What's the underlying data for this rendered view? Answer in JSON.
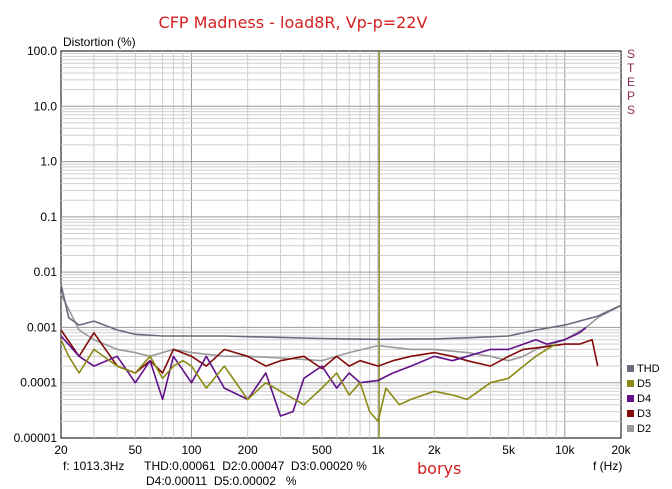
{
  "chart_data": {
    "type": "line",
    "title": "CFP Madness - load8R, Vp-p=22V",
    "ylabel": "Distortion (%)",
    "xlabel": "f (Hz)",
    "x_scale": "log",
    "y_scale": "log",
    "xlim": [
      20,
      20000
    ],
    "ylim": [
      1e-05,
      100
    ],
    "x_ticks": [
      "20",
      "50",
      "100",
      "200",
      "500",
      "1k",
      "2k",
      "5k",
      "10k",
      "20k"
    ],
    "y_ticks": [
      "100.0",
      "10.0",
      "1.0",
      "0.1",
      "0.01",
      "0.001",
      "0.0001",
      "0.00001"
    ],
    "grid": true,
    "marker_x": 1013.3,
    "steps_label": "STEPS",
    "legend": [
      "THD",
      "D5",
      "D4",
      "D3",
      "D2"
    ],
    "readout": {
      "line1": "f: 1013.3Hz      THD:0.00061  D2:0.00047  D3:0.00020 %",
      "line2": "D4:0.00011  D5:0.00002   %"
    },
    "author": "borys",
    "series": [
      {
        "name": "THD",
        "color": "#6b6b7e",
        "x": [
          20,
          22,
          25,
          30,
          40,
          50,
          70,
          100,
          150,
          200,
          300,
          500,
          700,
          1000,
          1500,
          2000,
          3000,
          5000,
          7000,
          10000,
          13000,
          15000,
          20000
        ],
        "y": [
          0.006,
          0.0015,
          0.0011,
          0.0013,
          0.0009,
          0.00075,
          0.0007,
          0.0007,
          0.0007,
          0.00068,
          0.00066,
          0.00063,
          0.00062,
          0.00061,
          0.00062,
          0.00062,
          0.00065,
          0.0007,
          0.0009,
          0.0011,
          0.0014,
          0.0016,
          0.0025
        ]
      },
      {
        "name": "D5",
        "color": "#8a8a14",
        "x": [
          20,
          22,
          25,
          30,
          40,
          50,
          60,
          70,
          80,
          90,
          100,
          120,
          150,
          200,
          250,
          300,
          400,
          500,
          600,
          700,
          800,
          900,
          1000,
          1100,
          1300,
          1500,
          2000,
          2500,
          3000,
          4000,
          5000,
          6000,
          7000,
          8000,
          9000
        ],
        "y": [
          0.0006,
          0.0003,
          0.00015,
          0.0004,
          0.0002,
          0.00015,
          0.0003,
          0.00012,
          0.0002,
          0.00025,
          0.0002,
          8e-05,
          0.0002,
          5e-05,
          0.0001,
          7e-05,
          4e-05,
          8e-05,
          0.00015,
          6e-05,
          0.0001,
          3e-05,
          2e-05,
          8e-05,
          4e-05,
          5e-05,
          7e-05,
          6e-05,
          5e-05,
          0.0001,
          0.00012,
          0.0002,
          0.0003,
          0.0004,
          0.0005
        ]
      },
      {
        "name": "D4",
        "color": "#62118a",
        "x": [
          20,
          25,
          30,
          40,
          50,
          60,
          70,
          80,
          100,
          120,
          150,
          200,
          250,
          300,
          350,
          400,
          500,
          600,
          700,
          800,
          1000,
          1200,
          1500,
          2000,
          2500,
          3000,
          4000,
          5000,
          6000,
          7000,
          8000,
          10000,
          12000,
          13000
        ],
        "y": [
          0.0007,
          0.0003,
          0.0002,
          0.0003,
          0.0001,
          0.00025,
          5e-05,
          0.0003,
          0.0001,
          0.0003,
          8e-05,
          5e-05,
          0.00015,
          2.5e-05,
          3e-05,
          0.00012,
          0.0002,
          8e-05,
          0.00015,
          0.0001,
          0.00011,
          0.00015,
          0.0002,
          0.0003,
          0.00025,
          0.0003,
          0.0004,
          0.0004,
          0.0005,
          0.0006,
          0.0005,
          0.0006,
          0.0008,
          0.001
        ]
      },
      {
        "name": "D3",
        "color": "#820a0a",
        "x": [
          20,
          25,
          30,
          40,
          50,
          60,
          70,
          80,
          100,
          120,
          150,
          200,
          250,
          300,
          400,
          500,
          600,
          700,
          800,
          1000,
          1200,
          1500,
          2000,
          2500,
          3000,
          4000,
          5000,
          6000,
          8000,
          10000,
          12000,
          14000,
          15000
        ],
        "y": [
          0.0009,
          0.0003,
          0.0008,
          0.0002,
          0.00015,
          0.00025,
          0.00015,
          0.0004,
          0.0003,
          0.0002,
          0.0004,
          0.0003,
          0.0002,
          0.00025,
          0.0003,
          0.00018,
          0.0003,
          0.0002,
          0.00025,
          0.0002,
          0.00025,
          0.0003,
          0.00035,
          0.0003,
          0.00025,
          0.0002,
          0.0003,
          0.0004,
          0.00045,
          0.0005,
          0.0005,
          0.0006,
          0.0002
        ]
      },
      {
        "name": "D2",
        "color": "#9a9a9a",
        "x": [
          20,
          25,
          30,
          40,
          50,
          60,
          80,
          100,
          150,
          200,
          300,
          500,
          700,
          1000,
          1500,
          2000,
          3000,
          4000,
          5000,
          6000,
          7000,
          10000,
          13000,
          15000,
          20000
        ],
        "y": [
          0.004,
          0.0009,
          0.0006,
          0.0004,
          0.00035,
          0.0003,
          0.0004,
          0.00035,
          0.0003,
          0.0003,
          0.00028,
          0.00025,
          0.00035,
          0.00047,
          0.0004,
          0.0004,
          0.00035,
          0.0003,
          0.00025,
          0.0003,
          0.0004,
          0.0006,
          0.001,
          0.0015,
          0.0025
        ]
      }
    ]
  }
}
